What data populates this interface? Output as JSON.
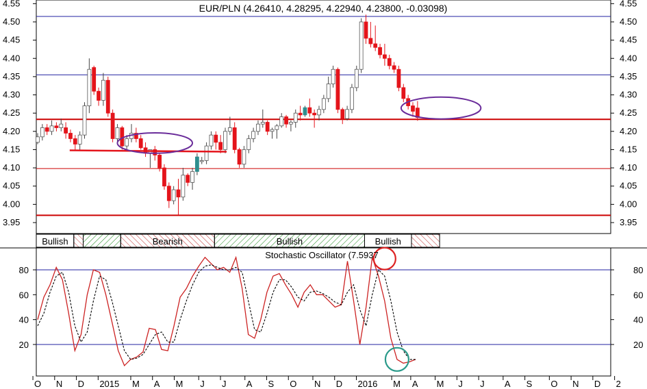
{
  "colors": {
    "up": "#ffffff",
    "up_border": "#000000",
    "teal_candle": "#2f8f8f",
    "down": "#e4141b",
    "support": "#cc0000",
    "hline": "#2020a0",
    "ellipse": "#6a2c9a",
    "stoch_k": "#cc2222",
    "stoch_d": "#000000",
    "circle_red": "#dd2222",
    "circle_teal": "#2a9a8a",
    "hatch": "#1e8a1e",
    "hatch_bear": "#c03030"
  },
  "chart_data": [
    {
      "type": "candlestick",
      "title": "EUR/PLN (4.26410, 4.28295, 4.22940, 4.23800, -0.03098)",
      "ylim": [
        3.92,
        4.56
      ],
      "y_ticks": [
        "4.55",
        "4.50",
        "4.45",
        "4.40",
        "4.35",
        "4.30",
        "4.25",
        "4.20",
        "4.15",
        "4.10",
        "4.05",
        "4.00",
        "3.95"
      ],
      "horizontal_lines": [
        {
          "y": 4.515,
          "kind": "blue"
        },
        {
          "y": 4.355,
          "kind": "blue"
        },
        {
          "y": 4.233,
          "kind": "red-thick"
        },
        {
          "y": 4.098,
          "kind": "red"
        },
        {
          "y": 3.97,
          "kind": "red-thick"
        }
      ],
      "trend_segment": {
        "from": 8,
        "to": 40,
        "y": 4.148
      },
      "ellipses": [
        {
          "center_index": 25,
          "center_y": 4.168,
          "half_width": 8,
          "half_height": 0.028
        },
        {
          "center_index": 86,
          "center_y": 4.264,
          "half_width": 8.5,
          "half_height": 0.03
        }
      ],
      "candles": [
        [
          4.17,
          4.195,
          4.165,
          4.185
        ],
        [
          4.185,
          4.22,
          4.175,
          4.21
        ],
        [
          4.21,
          4.22,
          4.19,
          4.2
        ],
        [
          4.2,
          4.23,
          4.19,
          4.215
        ],
        [
          4.215,
          4.225,
          4.2,
          4.21
        ],
        [
          4.21,
          4.235,
          4.2,
          4.22
        ],
        [
          4.21,
          4.225,
          4.18,
          4.195
        ],
        [
          4.195,
          4.205,
          4.17,
          4.18
        ],
        [
          4.18,
          4.19,
          4.15,
          4.165
        ],
        [
          4.165,
          4.2,
          4.15,
          4.19
        ],
        [
          4.19,
          4.28,
          4.18,
          4.27
        ],
        [
          4.27,
          4.4,
          4.25,
          4.37
        ],
        [
          4.375,
          4.38,
          4.3,
          4.31
        ],
        [
          4.31,
          4.32,
          4.27,
          4.285
        ],
        [
          4.285,
          4.36,
          4.27,
          4.34
        ],
        [
          4.34,
          4.35,
          4.24,
          4.25
        ],
        [
          4.25,
          4.26,
          4.17,
          4.18
        ],
        [
          4.18,
          4.22,
          4.17,
          4.21
        ],
        [
          4.21,
          4.215,
          4.15,
          4.16
        ],
        [
          4.16,
          4.19,
          4.15,
          4.18
        ],
        [
          4.18,
          4.22,
          4.17,
          4.195
        ],
        [
          4.195,
          4.21,
          4.17,
          4.18
        ],
        [
          4.18,
          4.19,
          4.15,
          4.155
        ],
        [
          4.155,
          4.17,
          4.13,
          4.14
        ],
        [
          4.14,
          4.15,
          4.1,
          4.15
        ],
        [
          4.15,
          4.16,
          4.12,
          4.135
        ],
        [
          4.135,
          4.14,
          4.09,
          4.1
        ],
        [
          4.1,
          4.11,
          4.04,
          4.05
        ],
        [
          4.05,
          4.06,
          3.99,
          4.01
        ],
        [
          4.01,
          4.05,
          4.0,
          4.04
        ],
        [
          4.04,
          4.07,
          3.97,
          4.02
        ],
        [
          4.02,
          4.1,
          4.01,
          4.08
        ],
        [
          4.08,
          4.085,
          4.05,
          4.06
        ],
        [
          4.06,
          4.1,
          4.04,
          4.09
        ],
        [
          4.09,
          4.14,
          4.08,
          4.13
        ],
        [
          4.12,
          4.13,
          4.11,
          4.12
        ],
        [
          4.12,
          4.17,
          4.11,
          4.16
        ],
        [
          4.16,
          4.2,
          4.15,
          4.19
        ],
        [
          4.19,
          4.2,
          4.15,
          4.17
        ],
        [
          4.17,
          4.19,
          4.14,
          4.15
        ],
        [
          4.15,
          4.21,
          4.14,
          4.2
        ],
        [
          4.2,
          4.24,
          4.19,
          4.21
        ],
        [
          4.21,
          4.225,
          4.14,
          4.15
        ],
        [
          4.15,
          4.155,
          4.1,
          4.11
        ],
        [
          4.11,
          4.16,
          4.1,
          4.15
        ],
        [
          4.15,
          4.19,
          4.14,
          4.18
        ],
        [
          4.18,
          4.21,
          4.17,
          4.2
        ],
        [
          4.2,
          4.23,
          4.19,
          4.22
        ],
        [
          4.22,
          4.26,
          4.21,
          4.225
        ],
        [
          4.225,
          4.23,
          4.19,
          4.2
        ],
        [
          4.2,
          4.21,
          4.18,
          4.205
        ],
        [
          4.205,
          4.22,
          4.18,
          4.215
        ],
        [
          4.215,
          4.25,
          4.21,
          4.24
        ],
        [
          4.24,
          4.245,
          4.21,
          4.22
        ],
        [
          4.22,
          4.23,
          4.2,
          4.225
        ],
        [
          4.225,
          4.26,
          4.21,
          4.25
        ],
        [
          4.25,
          4.27,
          4.23,
          4.245
        ],
        [
          4.245,
          4.27,
          4.24,
          4.265
        ],
        [
          4.265,
          4.29,
          4.24,
          4.25
        ],
        [
          4.25,
          4.26,
          4.21,
          4.245
        ],
        [
          4.245,
          4.27,
          4.23,
          4.26
        ],
        [
          4.26,
          4.3,
          4.25,
          4.29
        ],
        [
          4.29,
          4.35,
          4.28,
          4.33
        ],
        [
          4.33,
          4.38,
          4.32,
          4.37
        ],
        [
          4.37,
          4.375,
          4.25,
          4.26
        ],
        [
          4.26,
          4.265,
          4.22,
          4.235
        ],
        [
          4.235,
          4.27,
          4.23,
          4.26
        ],
        [
          4.26,
          4.33,
          4.25,
          4.32
        ],
        [
          4.32,
          4.38,
          4.31,
          4.37
        ],
        [
          4.37,
          4.51,
          4.36,
          4.5
        ],
        [
          4.5,
          4.52,
          4.44,
          4.455
        ],
        [
          4.455,
          4.5,
          4.43,
          4.44
        ],
        [
          4.44,
          4.49,
          4.42,
          4.43
        ],
        [
          4.43,
          4.44,
          4.4,
          4.41
        ],
        [
          4.41,
          4.44,
          4.38,
          4.4
        ],
        [
          4.4,
          4.41,
          4.37,
          4.38
        ],
        [
          4.38,
          4.39,
          4.36,
          4.37
        ],
        [
          4.37,
          4.38,
          4.31,
          4.32
        ],
        [
          4.32,
          4.33,
          4.28,
          4.29
        ],
        [
          4.29,
          4.3,
          4.26,
          4.27
        ],
        [
          4.27,
          4.28,
          4.24,
          4.255
        ],
        [
          4.264,
          4.283,
          4.229,
          4.238
        ]
      ]
    },
    {
      "type": "band",
      "segments": [
        {
          "label": "Bullish",
          "from": 0,
          "to": 8,
          "style": "label"
        },
        {
          "label": "",
          "from": 8,
          "to": 10,
          "style": "bear"
        },
        {
          "label": "",
          "from": 10,
          "to": 18,
          "style": "bull"
        },
        {
          "label": "Bearish",
          "from": 18,
          "to": 38,
          "style": "bear-label"
        },
        {
          "label": "Bullish",
          "from": 38,
          "to": 70,
          "style": "bull-label"
        },
        {
          "label": "Bullish",
          "from": 70,
          "to": 80,
          "style": "label"
        },
        {
          "label": "",
          "from": 80,
          "to": 86,
          "style": "bear"
        }
      ]
    },
    {
      "type": "line",
      "title": "Stochastic Oscillator (7.5937",
      "ylim": [
        0,
        100
      ],
      "y_ticks": [
        80,
        60,
        40,
        20
      ],
      "x_ticks": [
        {
          "label": "O",
          "x": -2
        },
        {
          "label": "N",
          "x": 6
        },
        {
          "label": "D",
          "x": 14
        },
        {
          "label": "2015",
          "x": 22
        },
        {
          "label": "M",
          "x": 34
        },
        {
          "label": "A",
          "x": 42
        },
        {
          "label": "M",
          "x": 50
        },
        {
          "label": "J",
          "x": 59
        },
        {
          "label": "J",
          "x": 67
        },
        {
          "label": "A",
          "x": 76
        },
        {
          "label": "S",
          "x": 84
        },
        {
          "label": "O",
          "x": 92
        },
        {
          "label": "N",
          "x": 101
        },
        {
          "label": "D",
          "x": 109
        },
        {
          "label": "2016",
          "x": 117
        },
        {
          "label": "M",
          "x": 130
        },
        {
          "label": "A",
          "x": 137
        },
        {
          "label": "M",
          "x": 146
        },
        {
          "label": "J",
          "x": 154
        },
        {
          "label": "J",
          "x": 162
        },
        {
          "label": "A",
          "x": 171
        },
        {
          "label": "S",
          "x": 179
        },
        {
          "label": "O",
          "x": 188
        },
        {
          "label": "N",
          "x": 196
        },
        {
          "label": "D",
          "x": 204
        },
        {
          "label": "2",
          "x": 212
        }
      ],
      "horizontal_lines": [
        80,
        20
      ],
      "series": [
        {
          "values": [
            40,
            58,
            68,
            82,
            72,
            45,
            15,
            28,
            60,
            80,
            78,
            60,
            38,
            15,
            3,
            8,
            10,
            14,
            33,
            32,
            16,
            15,
            35,
            58,
            65,
            75,
            83,
            90,
            85,
            80,
            82,
            78,
            90,
            65,
            28,
            25,
            40,
            62,
            75,
            77,
            68,
            60,
            50,
            62,
            68,
            60,
            60,
            55,
            50,
            52,
            87,
            55,
            20,
            50,
            90,
            75,
            55,
            25,
            8,
            5,
            6,
            8
          ]
        },
        {
          "values": [
            35,
            45,
            62,
            75,
            78,
            62,
            35,
            22,
            30,
            55,
            75,
            72,
            55,
            35,
            15,
            8,
            9,
            12,
            20,
            28,
            30,
            22,
            22,
            40,
            55,
            68,
            78,
            83,
            84,
            82,
            80,
            80,
            82,
            78,
            55,
            32,
            30,
            45,
            62,
            72,
            72,
            66,
            58,
            55,
            62,
            63,
            61,
            58,
            54,
            52,
            62,
            68,
            48,
            35,
            60,
            80,
            75,
            55,
            30,
            15,
            8,
            8
          ]
        }
      ],
      "circles": [
        {
          "index": 56,
          "y": 89,
          "radius": 16
        },
        {
          "index": 58,
          "y": 8,
          "radius": 17
        }
      ]
    }
  ]
}
